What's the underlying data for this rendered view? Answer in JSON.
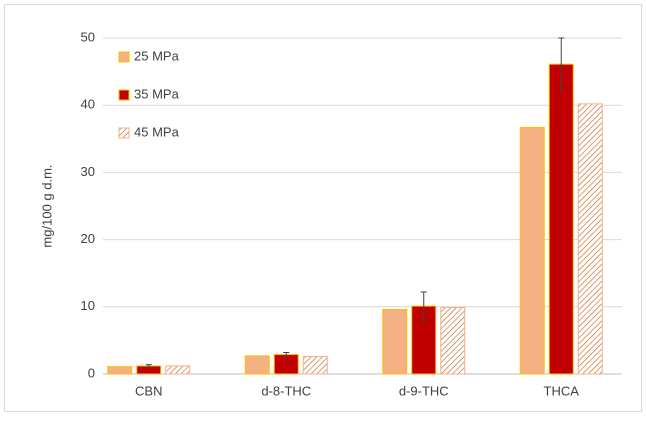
{
  "chart_data": {
    "type": "bar",
    "y_label": "mg/100 g d.m.",
    "categories": [
      "CBN",
      "d-8-THC",
      "d-9-THC",
      "THCA"
    ],
    "series": [
      {
        "name": "25 MPa",
        "color": "#f4b183",
        "edgecolor": "#ffc000",
        "values": [
          1.1,
          2.7,
          9.6,
          36.7
        ]
      },
      {
        "name": "35 MPa",
        "color": "#c00000",
        "edgecolor": "#ffc000",
        "values": [
          1.2,
          2.9,
          10.1,
          46.1
        ],
        "errors": [
          0.2,
          0.3,
          2.1,
          3.9
        ]
      },
      {
        "name": "45 MPa",
        "color": "#c55a11",
        "edgecolor": "#f4b183",
        "pattern": "hatch",
        "values": [
          1.2,
          2.6,
          9.9,
          40.2
        ]
      }
    ],
    "ylim": [
      0,
      50
    ],
    "yticks": [
      0,
      10,
      20,
      30,
      40,
      50
    ],
    "grid": true,
    "legend": "upper left"
  }
}
